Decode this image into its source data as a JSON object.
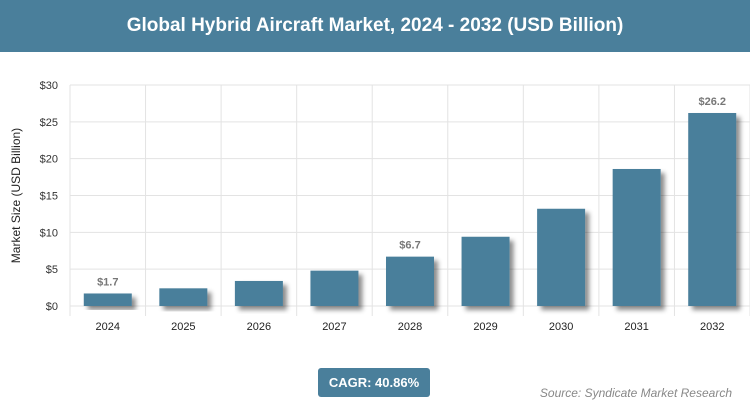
{
  "header": {
    "title": "Global Hybrid Aircraft Market, 2024 - 2032 (USD Billion)"
  },
  "chart_data": {
    "type": "bar",
    "title": "Global Hybrid Aircraft Market, 2024 - 2032 (USD Billion)",
    "ylabel": "Market Size (USD Billion)",
    "xlabel": "",
    "categories": [
      "2024",
      "2025",
      "2026",
      "2027",
      "2028",
      "2029",
      "2030",
      "2031",
      "2032"
    ],
    "values": [
      1.7,
      2.4,
      3.4,
      4.8,
      6.7,
      9.4,
      13.2,
      18.6,
      26.2
    ],
    "data_labels": {
      "0": "$1.7",
      "4": "$6.7",
      "8": "$26.2"
    },
    "ylim": [
      0,
      30
    ],
    "yticks": [
      "$0",
      "$5",
      "$10",
      "$15",
      "$20",
      "$25",
      "$30"
    ],
    "grid": true,
    "bar_color": "#4a7f9b"
  },
  "footer": {
    "cagr": "CAGR: 40.86%",
    "source": "Source: Syndicate Market Research"
  }
}
